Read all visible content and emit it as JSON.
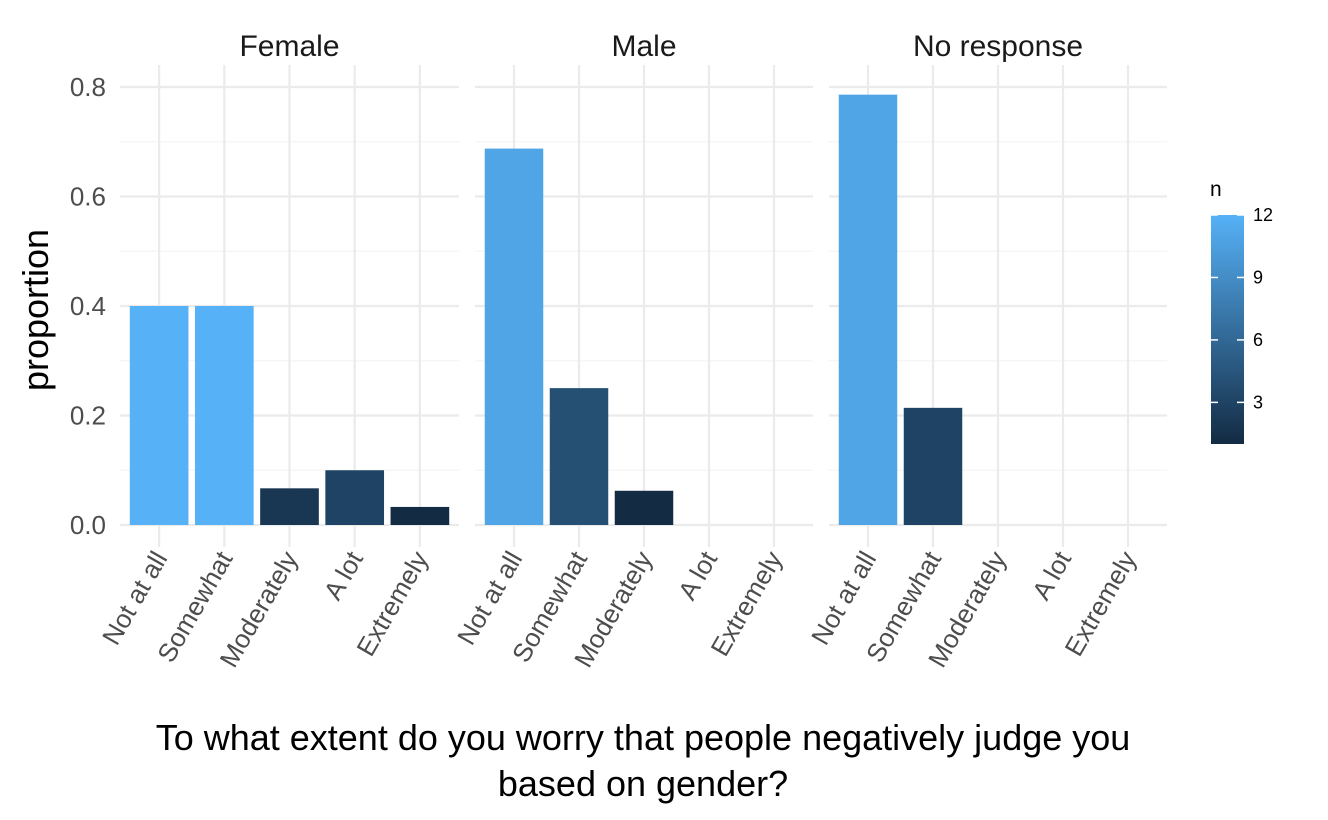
{
  "chart_data": {
    "type": "bar",
    "facets": [
      "Female",
      "Male",
      "No response"
    ],
    "categories": [
      "Not at all",
      "Somewhat",
      "Moderately",
      "A lot",
      "Extremely"
    ],
    "series": [
      {
        "facet": "Female",
        "values": [
          0.4,
          0.4,
          0.067,
          0.1,
          0.033
        ],
        "n": [
          12,
          12,
          2,
          3,
          1
        ]
      },
      {
        "facet": "Male",
        "values": [
          0.6875,
          0.25,
          0.0625,
          0,
          0
        ],
        "n": [
          11,
          4,
          1,
          0,
          0
        ]
      },
      {
        "facet": "No response",
        "values": [
          0.786,
          0.214,
          0,
          0,
          0
        ],
        "n": [
          11,
          3,
          0,
          0,
          0
        ]
      }
    ],
    "ylabel": "proportion",
    "xlabel_lines": [
      "To what extent do you worry that people negatively judge you",
      "based on gender?"
    ],
    "ylim": [
      0,
      0.8
    ],
    "y_ticks": [
      "0.0",
      "0.2",
      "0.4",
      "0.6",
      "0.8"
    ],
    "y_tick_values": [
      0,
      0.2,
      0.4,
      0.6,
      0.8
    ],
    "legend": {
      "title": "n",
      "ticks": [
        "3",
        "6",
        "9",
        "12"
      ],
      "tick_values": [
        3,
        6,
        9,
        12
      ],
      "range": [
        1,
        12
      ],
      "color_low": "#132b43",
      "color_high": "#56b1f7",
      "placement": "right"
    },
    "grid": true
  }
}
